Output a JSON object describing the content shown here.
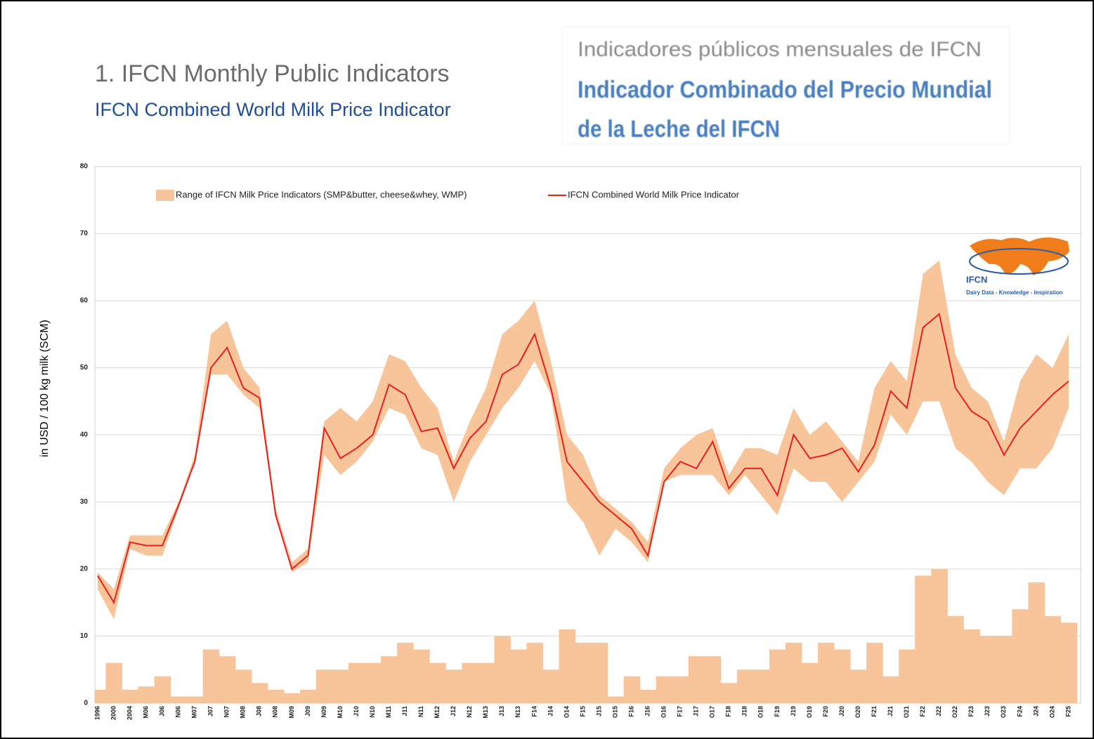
{
  "chart_data": {
    "type": "line",
    "title": "1. IFCN Monthly Public Indicators",
    "subtitle": "IFCN Combined World Milk Price Indicator",
    "translation": [
      "Indicadores públicos mensuales de IFCN",
      "Indicador Combinado del Precio Mundial",
      "de la Leche del IFCN"
    ],
    "ylabel": "in USD / 100 kg milk (SCM)",
    "logo": {
      "name": "IFCN",
      "tagline": "Dairy Data - Knowledge - Inspiration"
    },
    "categories": [
      "1996",
      "2000",
      "2004",
      "M06",
      "J06",
      "N06",
      "M07",
      "J07",
      "N07",
      "M08",
      "J08",
      "N08",
      "M09",
      "J09",
      "N09",
      "M10",
      "J10",
      "N10",
      "M11",
      "J11",
      "N11",
      "M12",
      "J12",
      "N12",
      "M13",
      "J13",
      "N13",
      "F14",
      "J14",
      "O14",
      "F15",
      "J15",
      "O15",
      "F16",
      "J16",
      "O16",
      "F17",
      "J17",
      "O17",
      "F18",
      "J18",
      "O18",
      "F19",
      "J19",
      "O19",
      "F20",
      "J20",
      "O20",
      "F21",
      "J21",
      "O21",
      "F22",
      "J22",
      "O22",
      "F23",
      "J23",
      "O23",
      "F24",
      "J24",
      "O24",
      "F25"
    ],
    "series": [
      {
        "name": "IFCN Combined World Milk Price Indicator",
        "color": "#e8201c",
        "values": [
          19,
          15,
          24,
          23.5,
          23.5,
          29.5,
          36,
          50,
          53,
          47,
          45.5,
          28,
          20,
          22,
          41,
          36.5,
          38,
          40,
          47.5,
          46,
          40.5,
          41,
          35,
          39.5,
          42,
          49,
          50.5,
          55,
          47,
          36,
          33,
          30,
          28,
          26,
          22,
          33,
          36,
          35,
          39,
          32,
          35,
          35,
          31,
          40,
          36.5,
          37,
          38,
          34.5,
          38.5,
          46.5,
          44,
          56,
          58,
          47,
          43.5,
          42,
          37,
          41,
          43.5,
          46,
          48
        ]
      }
    ],
    "range": {
      "name": "Range of IFCN Milk Price Indicators (SMP&butter, cheese&whey, WMP)",
      "color": "#f8c49a",
      "low": [
        17,
        12.5,
        23,
        22,
        22,
        29,
        36,
        49,
        49,
        46,
        44,
        28,
        19.5,
        21,
        37,
        34,
        36,
        39,
        44,
        43,
        38,
        37,
        30,
        36,
        40,
        44,
        47,
        51,
        46,
        30,
        27,
        22,
        26,
        24,
        21,
        33,
        34,
        34,
        34,
        31,
        34,
        31,
        28,
        35,
        33,
        33,
        30,
        33,
        36,
        43,
        40,
        45,
        45,
        38,
        36,
        33,
        31,
        35,
        35,
        38,
        44
      ],
      "high": [
        19.5,
        17,
        25,
        25,
        25,
        30,
        37,
        55,
        57,
        50,
        47,
        29,
        21,
        23,
        42,
        44,
        42,
        45,
        52,
        51,
        47,
        44,
        36,
        42,
        47,
        55,
        57,
        60,
        51,
        40,
        37,
        31,
        29,
        27,
        24,
        35,
        38,
        40,
        41,
        34,
        38,
        38,
        37,
        44,
        40,
        42,
        39,
        36,
        47,
        51,
        48,
        64,
        66,
        52,
        47,
        45,
        39,
        48,
        52,
        50,
        55
      ]
    },
    "bars": {
      "color": "#f8c49a",
      "values": [
        2,
        6,
        2,
        2.5,
        4,
        1,
        1,
        8,
        7,
        5,
        3,
        2,
        1.5,
        2,
        5,
        5,
        6,
        6,
        7,
        9,
        8,
        6,
        5,
        6,
        6,
        10,
        8,
        9,
        5,
        11,
        9,
        9,
        1,
        4,
        2,
        4,
        4,
        7,
        7,
        3,
        5,
        5,
        8,
        9,
        6,
        9,
        8,
        5,
        9,
        4,
        8,
        19,
        20,
        13,
        11,
        10,
        10,
        14,
        18,
        13,
        12
      ]
    },
    "ylim": [
      0,
      80
    ],
    "yticks": [
      0,
      10,
      20,
      30,
      40,
      50,
      60,
      70,
      80
    ],
    "grid": true
  }
}
